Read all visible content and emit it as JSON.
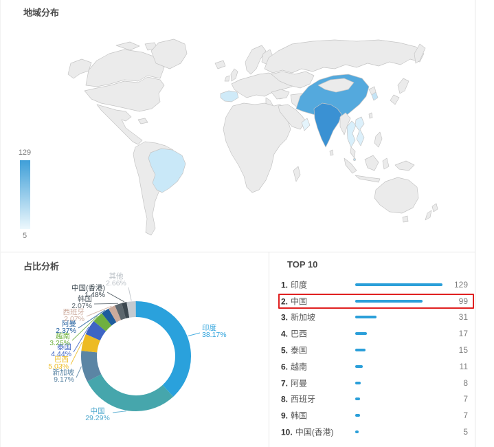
{
  "geo_section": {
    "title": "地域分布",
    "legend": {
      "max": "129",
      "min": "5"
    }
  },
  "pie_section": {
    "title": "占比分析",
    "slices": [
      {
        "name": "印度",
        "pct": "38.17%",
        "value": 38.17,
        "color": "#2AA1DC"
      },
      {
        "name": "中国",
        "pct": "29.29%",
        "value": 29.29,
        "color": "#46A6AC",
        "label_color": "#4FA9CE"
      },
      {
        "name": "新加坡",
        "pct": "9.17%",
        "value": 9.17,
        "color": "#5B85A4"
      },
      {
        "name": "巴西",
        "pct": "5.03%",
        "value": 5.03,
        "color": "#EDBB22"
      },
      {
        "name": "泰国",
        "pct": "4.44%",
        "value": 4.44,
        "color": "#3E65C4"
      },
      {
        "name": "越南",
        "pct": "3.25%",
        "value": 3.25,
        "color": "#6FB03F"
      },
      {
        "name": "阿曼",
        "pct": "2.37%",
        "value": 2.37,
        "color": "#1E5C9C"
      },
      {
        "name": "西班牙",
        "pct": "2.07%",
        "value": 2.07,
        "color": "#CCAB9C"
      },
      {
        "name": "韩国",
        "pct": "2.07%",
        "value": 2.07,
        "color": "#5C676E"
      },
      {
        "name": "中国(香港)",
        "pct": "1.48%",
        "value": 1.48,
        "color": "#3C4850"
      },
      {
        "name": "其他",
        "pct": "2.66%",
        "value": 2.66,
        "color": "#C4CAD0",
        "label_color": "#B9BFC5"
      }
    ]
  },
  "top10": {
    "title": "TOP 10",
    "max_value": 129,
    "bar_color": "#2B9FD9",
    "items": [
      {
        "rank_label": "1.",
        "name": "印度",
        "value": 129
      },
      {
        "rank_label": "2.",
        "name": "中国",
        "value": 99
      },
      {
        "rank_label": "3.",
        "name": "新加坡",
        "value": 31
      },
      {
        "rank_label": "4.",
        "name": "巴西",
        "value": 17
      },
      {
        "rank_label": "5.",
        "name": "泰国",
        "value": 15
      },
      {
        "rank_label": "6.",
        "name": "越南",
        "value": 11
      },
      {
        "rank_label": "7.",
        "name": "阿曼",
        "value": 8
      },
      {
        "rank_label": "8.",
        "name": "西班牙",
        "value": 7
      },
      {
        "rank_label": "9.",
        "name": "韩国",
        "value": 7
      },
      {
        "rank_label": "10.",
        "name": "中国(香港)",
        "value": 5
      }
    ],
    "highlight": {
      "rank_index": 1,
      "color": "#E02020"
    }
  },
  "map": {
    "land_color": "#EBEBEB",
    "border_color": "#C5C5C5",
    "legend_top_color": "#3F9FD8",
    "legend_bottom_color": "#EDF8FD",
    "regions": {
      "china": "#54A9DD",
      "india": "#3A91D3",
      "brazil": "#C9E8F8",
      "spain": "#CFEAF8",
      "south-korea": "#C4E4F6",
      "thailand": "#D8EFFB",
      "vietnam": "#DCF0FB",
      "oman": "#E4F4FC",
      "hong-kong": "#49A5DA",
      "singapore": "#BBDFF3"
    }
  },
  "chart_data": [
    {
      "type": "heatmap",
      "subtype": "choropleth-world-map",
      "title": "地域分布",
      "colorbar": {
        "max": 129,
        "min": 5
      },
      "regions": [
        {
          "name": "印度",
          "value": 129
        },
        {
          "name": "中国",
          "value": 99
        },
        {
          "name": "新加坡",
          "value": 31
        },
        {
          "name": "巴西",
          "value": 17
        },
        {
          "name": "泰国",
          "value": 15
        },
        {
          "name": "越南",
          "value": 11
        },
        {
          "name": "阿曼",
          "value": 8
        },
        {
          "name": "西班牙",
          "value": 7
        },
        {
          "name": "韩国",
          "value": 7
        },
        {
          "name": "中国(香港)",
          "value": 5
        }
      ]
    },
    {
      "type": "pie",
      "subtype": "donut",
      "title": "占比分析",
      "labels": [
        "印度",
        "中国",
        "新加坡",
        "巴西",
        "泰国",
        "越南",
        "阿曼",
        "西班牙",
        "韩国",
        "中国(香港)",
        "其他"
      ],
      "values": [
        38.17,
        29.29,
        9.17,
        5.03,
        4.44,
        3.25,
        2.37,
        2.07,
        2.07,
        1.48,
        2.66
      ],
      "unit": "%",
      "start_angle": "top",
      "direction": "clockwise"
    },
    {
      "type": "bar",
      "title": "TOP 10",
      "orientation": "horizontal",
      "categories": [
        "印度",
        "中国",
        "新加坡",
        "巴西",
        "泰国",
        "越南",
        "阿曼",
        "西班牙",
        "韩国",
        "中国(香港)"
      ],
      "values": [
        129,
        99,
        31,
        17,
        15,
        11,
        8,
        7,
        7,
        5
      ],
      "xlim": [
        0,
        129
      ],
      "highlighted_category": "中国"
    }
  ]
}
